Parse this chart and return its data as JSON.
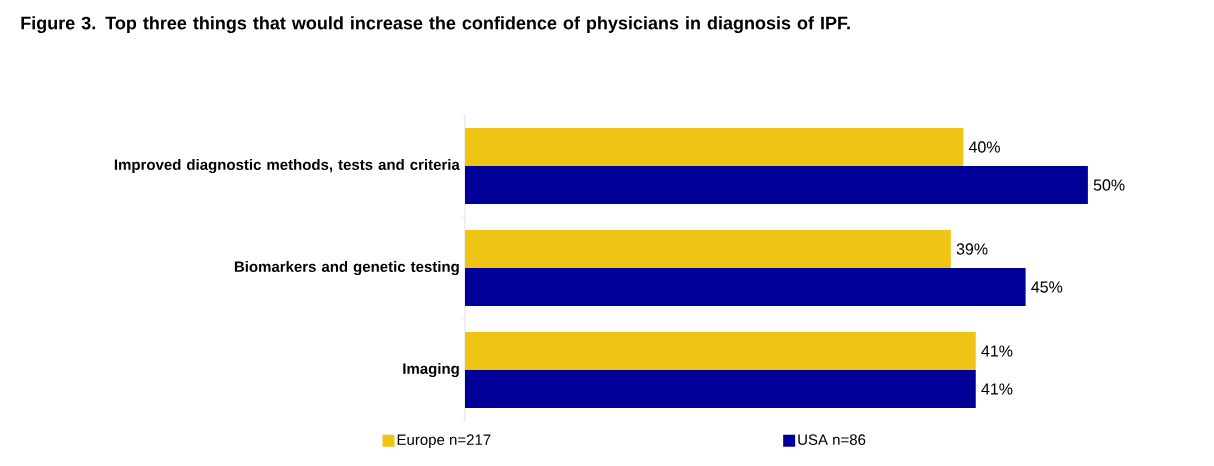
{
  "chart_data": {
    "type": "bar",
    "orientation": "horizontal",
    "title": "Figure 3. Top three things that would increase the confidence of physicians in diagnosis of IPF.",
    "categories": [
      "Improved diagnostic methods, tests and criteria",
      "Biomarkers and genetic testing",
      "Imaging"
    ],
    "series": [
      {
        "name": "Europe n=217",
        "color": "#f0c414",
        "values": [
          40,
          39,
          41
        ],
        "value_labels": [
          "40%",
          "39%",
          "41%"
        ]
      },
      {
        "name": "USA n=86",
        "color": "#000099",
        "values": [
          50,
          45,
          41
        ],
        "value_labels": [
          "50%",
          "45%",
          "41%"
        ]
      }
    ],
    "legend": "bottom"
  }
}
